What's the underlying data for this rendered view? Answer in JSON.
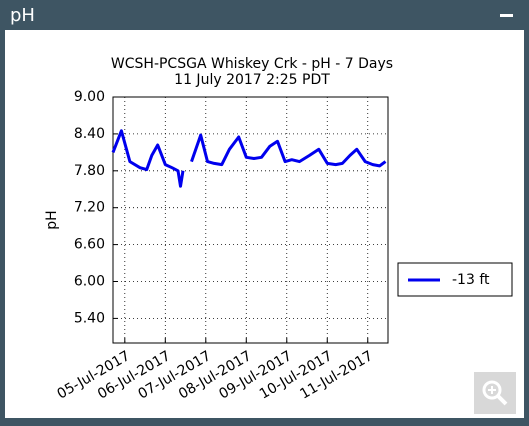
{
  "header": {
    "title": "pH"
  },
  "chart_data": {
    "type": "line",
    "title": "WCSH-PCSGA Whiskey Crk - pH - 7 Days",
    "subtitle": "11 July 2017 2:25 PDT",
    "y_label": "pH",
    "x": [
      "2017-07-04T17:00",
      "2017-07-04T22:00",
      "2017-07-05T03:00",
      "2017-07-05T09:00",
      "2017-07-05T13:00",
      "2017-07-05T16:00",
      "2017-07-05T19:30",
      "2017-07-06T00:00",
      "2017-07-06T04:00",
      "2017-07-06T07:30",
      "2017-07-06T09:00",
      "2017-07-06T10:30",
      "2017-07-06T12:00",
      "2017-07-06T15:30",
      "2017-07-06T21:00",
      "2017-07-07T01:00",
      "2017-07-07T05:00",
      "2017-07-07T09:30",
      "2017-07-07T14:00",
      "2017-07-07T19:30",
      "2017-07-08T00:00",
      "2017-07-08T04:30",
      "2017-07-08T09:00",
      "2017-07-08T14:00",
      "2017-07-08T18:30",
      "2017-07-08T23:00",
      "2017-07-09T03:00",
      "2017-07-09T07:30",
      "2017-07-09T13:30",
      "2017-07-09T19:00",
      "2017-07-10T00:00",
      "2017-07-10T05:00",
      "2017-07-10T09:00",
      "2017-07-10T13:30",
      "2017-07-10T17:30",
      "2017-07-10T22:30",
      "2017-07-11T03:00",
      "2017-07-11T07:00",
      "2017-07-11T10:30"
    ],
    "series": [
      {
        "name": "-13 ft",
        "color": "#0000ee",
        "values": [
          8.1,
          8.45,
          7.95,
          7.85,
          7.82,
          8.05,
          8.22,
          7.9,
          7.85,
          7.8,
          7.55,
          7.8,
          null,
          7.95,
          8.38,
          7.95,
          7.92,
          7.9,
          8.15,
          8.35,
          8.02,
          8.0,
          8.02,
          8.2,
          8.28,
          7.95,
          7.98,
          7.95,
          8.05,
          8.15,
          7.92,
          7.9,
          7.92,
          8.05,
          8.15,
          7.95,
          7.9,
          7.88,
          7.95
        ]
      }
    ],
    "xlim": [
      "2017-07-04T17:00",
      "2017-07-11T12:00"
    ],
    "xticks": [
      {
        "value": "2017-07-05",
        "label": "05-Jul-2017"
      },
      {
        "value": "2017-07-06",
        "label": "06-Jul-2017"
      },
      {
        "value": "2017-07-07",
        "label": "07-Jul-2017"
      },
      {
        "value": "2017-07-08",
        "label": "08-Jul-2017"
      },
      {
        "value": "2017-07-09",
        "label": "09-Jul-2017"
      },
      {
        "value": "2017-07-10",
        "label": "10-Jul-2017"
      },
      {
        "value": "2017-07-11",
        "label": "11-Jul-2017"
      }
    ],
    "ylim": [
      5.0,
      9.0
    ],
    "yticks": [
      {
        "value": 9.0,
        "label": "9.00"
      },
      {
        "value": 8.4,
        "label": "8.40"
      },
      {
        "value": 7.8,
        "label": "7.80"
      },
      {
        "value": 7.2,
        "label": "7.20"
      },
      {
        "value": 6.6,
        "label": "6.60"
      },
      {
        "value": 6.0,
        "label": "6.00"
      },
      {
        "value": 5.4,
        "label": "5.40"
      }
    ],
    "grid": true,
    "legend": "right"
  }
}
